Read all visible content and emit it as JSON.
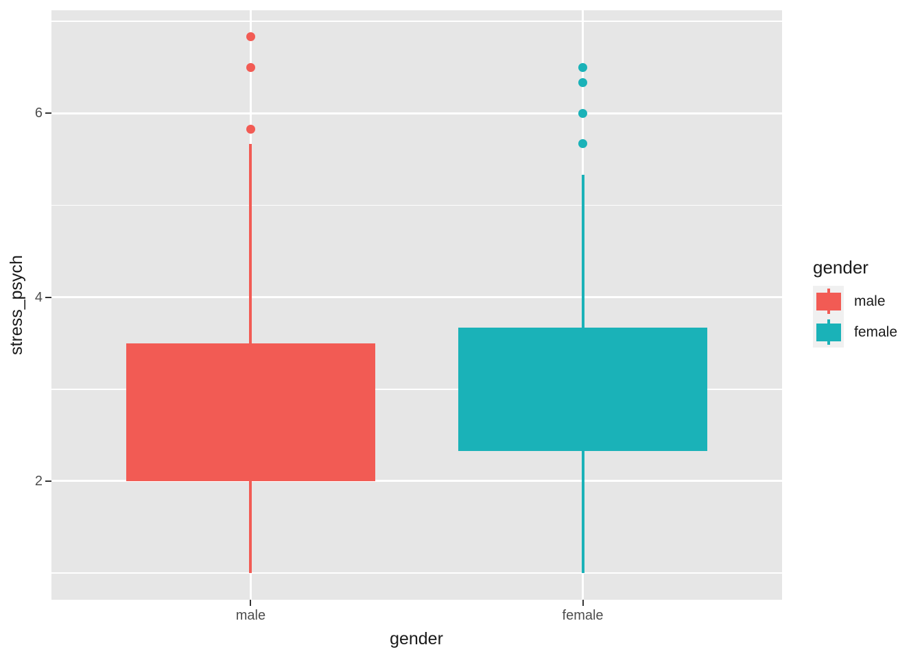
{
  "chart_data": {
    "type": "boxplot",
    "xlabel": "gender",
    "ylabel": "stress_psych",
    "x_categories": [
      "male",
      "female"
    ],
    "y_ticks": [
      2,
      4,
      6
    ],
    "y_minor_ticks": [
      1,
      3,
      5,
      7
    ],
    "ylim": [
      0.71,
      7.12
    ],
    "grid": "on",
    "series": [
      {
        "name": "male",
        "color": "#F25B54",
        "x": 1,
        "q1": 2.0,
        "q3": 3.5,
        "whisker_low": 1.0,
        "whisker_high": 5.67,
        "outliers": [
          5.83,
          6.5,
          6.83
        ]
      },
      {
        "name": "female",
        "color": "#1AB2B8",
        "x": 2,
        "q1": 2.33,
        "q3": 3.67,
        "whisker_low": 1.0,
        "whisker_high": 5.33,
        "outliers": [
          5.67,
          6.0,
          6.33,
          6.5
        ]
      }
    ],
    "legend": {
      "title": "gender",
      "position": "right",
      "entries": [
        {
          "label": "male",
          "color": "#F25B54"
        },
        {
          "label": "female",
          "color": "#1AB2B8"
        }
      ]
    }
  },
  "style": {
    "panel_bg": "#E6E6E6",
    "gridline_color": "#FFFFFF",
    "tick_label_color": "#4D4D4D",
    "axis_title_color": "#1A1A1A",
    "legend_key_bg": "#F0F0F0"
  }
}
